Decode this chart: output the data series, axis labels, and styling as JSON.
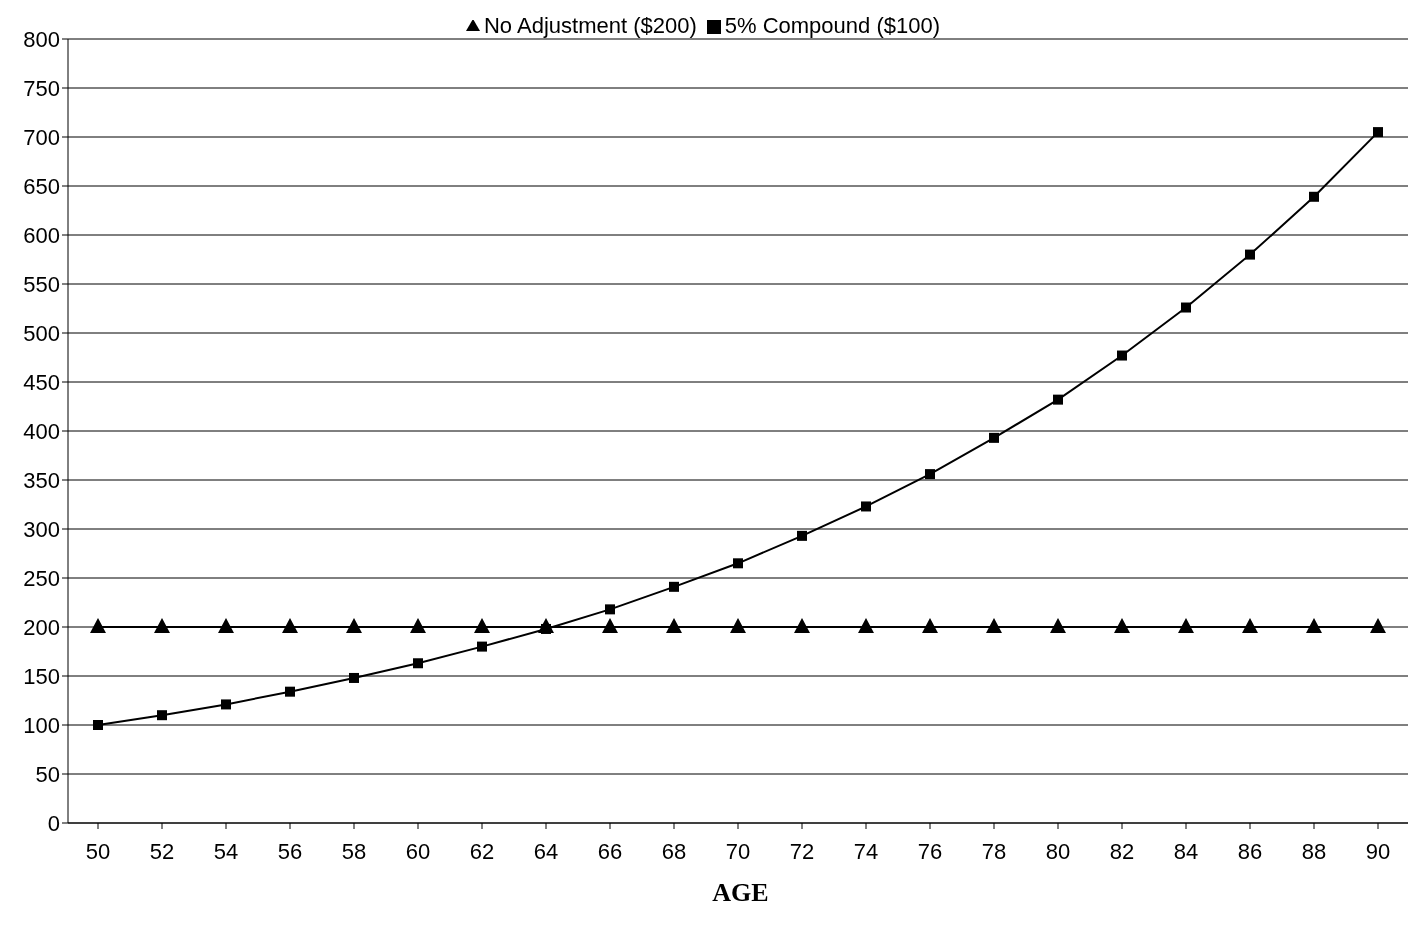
{
  "chart_data": {
    "type": "line",
    "xlabel": "AGE",
    "categories": [
      "50",
      "52",
      "54",
      "56",
      "58",
      "60",
      "62",
      "64",
      "66",
      "68",
      "70",
      "72",
      "74",
      "76",
      "78",
      "80",
      "82",
      "84",
      "86",
      "88",
      "90"
    ],
    "series": [
      {
        "name": "No Adjustment ($200)",
        "color": "#000000",
        "marker": "triangle",
        "values": [
          200,
          200,
          200,
          200,
          200,
          200,
          200,
          200,
          200,
          200,
          200,
          200,
          200,
          200,
          200,
          200,
          200,
          200,
          200,
          200,
          200
        ]
      },
      {
        "name": "5% Compound ($100)",
        "color": "#000000",
        "marker": "square",
        "values": [
          100,
          110,
          121,
          134,
          148,
          163,
          180,
          198,
          218,
          241,
          265,
          293,
          323,
          356,
          393,
          432,
          477,
          526,
          580,
          639,
          705
        ]
      }
    ],
    "ylim": [
      0,
      800
    ],
    "yticks": [
      0,
      50,
      100,
      150,
      200,
      250,
      300,
      350,
      400,
      450,
      500,
      550,
      600,
      650,
      700,
      750,
      800
    ],
    "grid": "y",
    "legend": "top",
    "line_style": "solid"
  }
}
